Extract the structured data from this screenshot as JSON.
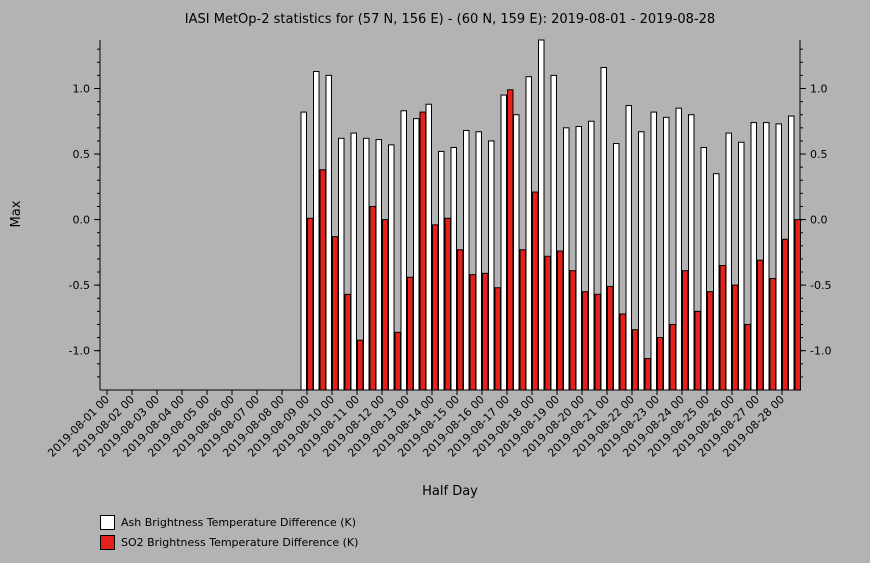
{
  "chart_data": {
    "type": "bar",
    "title": "IASI MetOp-2 statistics for (57 N, 156 E) - (60 N, 159 E): 2019-08-01 - 2019-08-28",
    "xlabel": "Half Day",
    "ylabel": "Max",
    "ylim": [
      -1.3,
      1.37
    ],
    "yticks": [
      -1.0,
      -0.5,
      0.0,
      0.5,
      1.0
    ],
    "ytick_labels": [
      "-1.0",
      "-0.5",
      "0.0",
      "0.5",
      "1.0"
    ],
    "x_tick_labels": [
      "2019-08-01 00",
      "2019-08-02 00",
      "2019-08-03 00",
      "2019-08-04 00",
      "2019-08-05 00",
      "2019-08-06 00",
      "2019-08-07 00",
      "2019-08-08 00",
      "2019-08-09 00",
      "2019-08-10 00",
      "2019-08-11 00",
      "2019-08-12 00",
      "2019-08-13 00",
      "2019-08-14 00",
      "2019-08-15 00",
      "2019-08-16 00",
      "2019-08-17 00",
      "2019-08-18 00",
      "2019-08-19 00",
      "2019-08-20 00",
      "2019-08-21 00",
      "2019-08-22 00",
      "2019-08-23 00",
      "2019-08-24 00",
      "2019-08-25 00",
      "2019-08-26 00",
      "2019-08-27 00",
      "2019-08-28 00"
    ],
    "grid": false,
    "legend_position": "bottom-left",
    "series": [
      {
        "name": "Ash Brightness Temperature Difference (K)",
        "color": "#ffffff",
        "values": [
          null,
          null,
          null,
          null,
          null,
          null,
          null,
          null,
          null,
          null,
          null,
          null,
          null,
          null,
          null,
          null,
          0.82,
          1.13,
          1.1,
          0.62,
          0.66,
          0.62,
          0.61,
          0.57,
          0.83,
          0.77,
          0.88,
          0.52,
          0.55,
          0.68,
          0.67,
          0.6,
          0.95,
          0.8,
          1.09,
          1.37,
          1.1,
          0.7,
          0.71,
          0.75,
          1.16,
          0.58,
          0.87,
          0.67,
          0.82,
          0.78,
          0.85,
          0.8,
          0.55,
          0.35,
          0.66,
          0.59,
          0.74,
          0.74,
          0.73,
          0.79
        ]
      },
      {
        "name": "SO2 Brightness Temperature Difference (K)",
        "color": "#e8201c",
        "values": [
          null,
          null,
          null,
          null,
          null,
          null,
          null,
          null,
          null,
          null,
          null,
          null,
          null,
          null,
          null,
          null,
          0.01,
          0.38,
          -0.13,
          -0.57,
          -0.92,
          0.1,
          0.0,
          -0.86,
          -0.44,
          0.82,
          -0.04,
          0.01,
          -0.23,
          -0.42,
          -0.41,
          -0.52,
          0.99,
          -0.23,
          0.21,
          -0.28,
          -0.24,
          -0.39,
          -0.55,
          -0.57,
          -0.51,
          -0.72,
          -0.84,
          -1.06,
          -0.9,
          -0.8,
          -0.39,
          -0.7,
          -0.55,
          -0.35,
          -0.5,
          -0.8,
          -0.31,
          -0.45,
          -0.15,
          0.0
        ]
      }
    ]
  }
}
